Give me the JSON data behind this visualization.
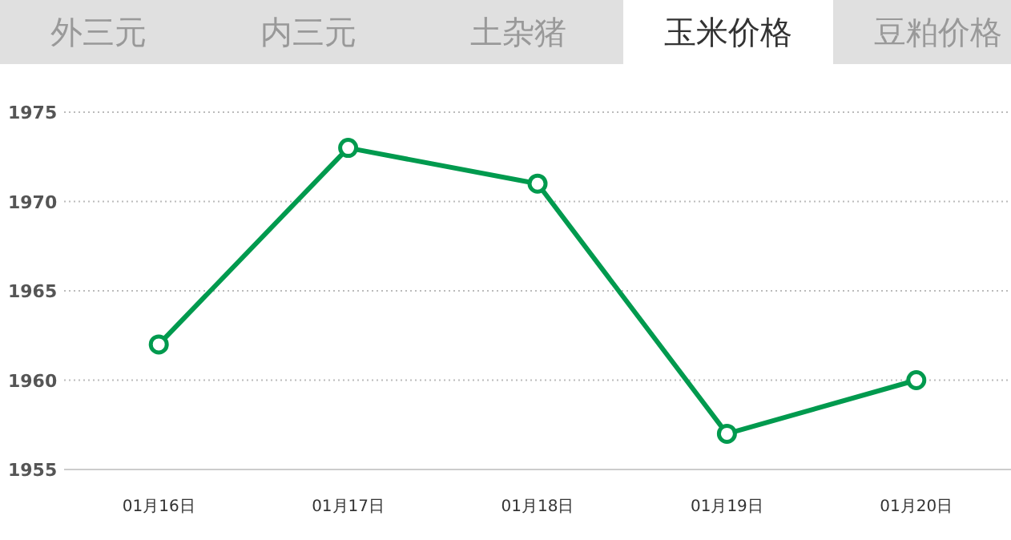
{
  "chart_data": {
    "type": "line",
    "title": "玉米价格",
    "annotations": [
      "外三元",
      "内三元",
      "土杂猪",
      "豆粕价格"
    ],
    "categories": [
      "01月16日",
      "01月17日",
      "01月18日",
      "01月19日",
      "01月20日"
    ],
    "series": [
      {
        "color": "#009a4e",
        "values": [
          1962,
          1973,
          1971,
          1957,
          1960
        ]
      }
    ],
    "ylim": [
      1955,
      1975
    ],
    "yticks": [
      1955,
      1960,
      1965,
      1970,
      1975
    ],
    "grid": "y",
    "marker": "circle",
    "line_style": "solid"
  }
}
